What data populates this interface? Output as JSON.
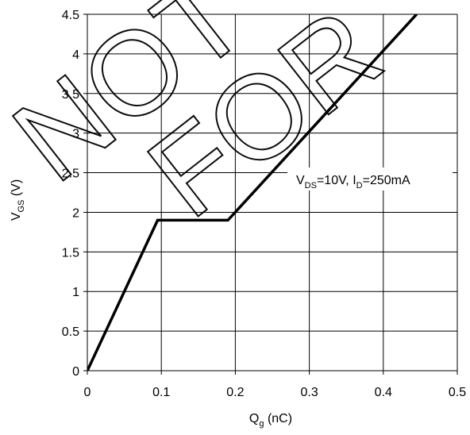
{
  "chart_data": {
    "type": "line",
    "x": [
      0,
      0.095,
      0.19,
      0.445
    ],
    "y": [
      0,
      1.9,
      1.9,
      4.5
    ],
    "xlim": [
      0,
      0.5
    ],
    "ylim": [
      0,
      4.5
    ],
    "xticks": [
      0,
      0.1,
      0.2,
      0.3,
      0.4,
      0.5
    ],
    "xtick_labels": [
      "0",
      "0.1",
      "0.2",
      "0.3",
      "0.4",
      "0.5"
    ],
    "yticks": [
      0,
      0.5,
      1,
      1.5,
      2,
      2.5,
      3,
      3.5,
      4,
      4.5
    ],
    "ytick_labels": [
      "0",
      "0.5",
      "1",
      "1.5",
      "2",
      "2.5",
      "3",
      "3.5",
      "4",
      "4.5"
    ],
    "xlabel": {
      "main": "Q",
      "sub": "g",
      "unit": " (nC)"
    },
    "ylabel": {
      "main": "V",
      "sub": "GS",
      "unit": " (V)"
    },
    "annotation": {
      "parts": [
        "V",
        "DS",
        "=10V, I",
        "D",
        "=250mA"
      ]
    },
    "grid": true,
    "line_color": "#000000",
    "watermark": [
      "NOT",
      "FOR"
    ]
  }
}
